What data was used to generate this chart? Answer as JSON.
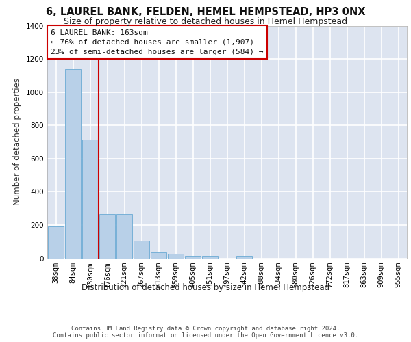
{
  "title1": "6, LAUREL BANK, FELDEN, HEMEL HEMPSTEAD, HP3 0NX",
  "title2": "Size of property relative to detached houses in Hemel Hempstead",
  "xlabel": "Distribution of detached houses by size in Hemel Hempstead",
  "ylabel": "Number of detached properties",
  "footer1": "Contains HM Land Registry data © Crown copyright and database right 2024.",
  "footer2": "Contains public sector information licensed under the Open Government Licence v3.0.",
  "categories": [
    "38sqm",
    "84sqm",
    "130sqm",
    "176sqm",
    "221sqm",
    "267sqm",
    "313sqm",
    "359sqm",
    "405sqm",
    "451sqm",
    "497sqm",
    "542sqm",
    "588sqm",
    "634sqm",
    "680sqm",
    "726sqm",
    "772sqm",
    "817sqm",
    "863sqm",
    "909sqm",
    "955sqm"
  ],
  "values": [
    190,
    1140,
    715,
    265,
    265,
    105,
    35,
    28,
    14,
    14,
    0,
    14,
    0,
    0,
    0,
    0,
    0,
    0,
    0,
    0,
    0
  ],
  "bar_color": "#b8d0e8",
  "bar_edge_color": "#6aaad4",
  "vline_pos": 2.5,
  "vline_color": "#cc0000",
  "annotation_title": "6 LAUREL BANK: 163sqm",
  "annotation_line1": "← 76% of detached houses are smaller (1,907)",
  "annotation_line2": "23% of semi-detached houses are larger (584) →",
  "ylim": [
    0,
    1400
  ],
  "yticks": [
    0,
    200,
    400,
    600,
    800,
    1000,
    1200,
    1400
  ],
  "bg_color": "#dde4f0",
  "grid_color": "#ffffff",
  "title1_fontsize": 10.5,
  "title2_fontsize": 9,
  "tick_fontsize": 7.5,
  "annotation_fontsize": 8,
  "footer_fontsize": 6.5,
  "ylabel_fontsize": 8.5,
  "xlabel_fontsize": 8.5
}
